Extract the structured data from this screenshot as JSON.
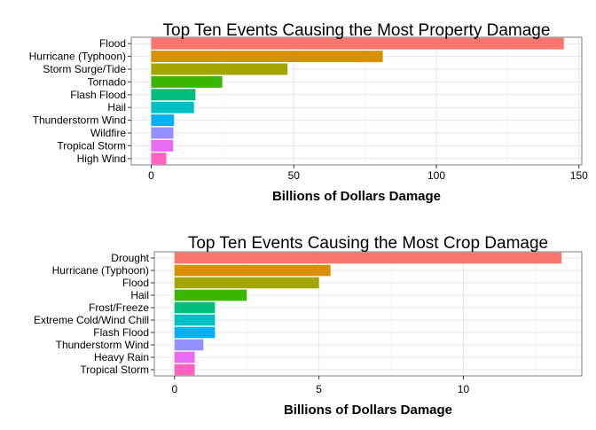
{
  "chart_data": [
    {
      "type": "bar",
      "orientation": "horizontal",
      "title": "Top Ten Events Causing the Most Property Damage",
      "xlabel": "Billions of Dollars Damage",
      "ylabel": "",
      "xlim": [
        -7,
        151
      ],
      "xticks": [
        0,
        50,
        100,
        150
      ],
      "grid": true,
      "legend": "none",
      "categories": [
        "Flood",
        "Hurricane (Typhoon)",
        "Storm Surge/Tide",
        "Tornado",
        "Flash Flood",
        "Hail",
        "Thunderstorm Wind",
        "Wildfire",
        "Tropical Storm",
        "High Wind"
      ],
      "values": [
        144.7,
        81.2,
        47.8,
        24.9,
        15.5,
        15.0,
        8.0,
        7.8,
        7.7,
        5.3
      ],
      "colors": [
        "#F8766D",
        "#D89000",
        "#A3A500",
        "#39B600",
        "#00BF7D",
        "#00BFC4",
        "#00B0F6",
        "#9590FF",
        "#E76BF3",
        "#FF62BC"
      ]
    },
    {
      "type": "bar",
      "orientation": "horizontal",
      "title": "Top Ten Events Causing the Most Crop Damage",
      "xlabel": "Billions of Dollars Damage",
      "ylabel": "",
      "xlim": [
        -0.7,
        14.1
      ],
      "xticks": [
        0,
        5,
        10
      ],
      "grid": true,
      "legend": "none",
      "categories": [
        "Drought",
        "Hurricane (Typhoon)",
        "Flood",
        "Hail",
        "Frost/Freeze",
        "Extreme Cold/Wind Chill",
        "Flash Flood",
        "Thunderstorm Wind",
        "Heavy Rain",
        "Tropical Storm"
      ],
      "values": [
        13.4,
        5.4,
        5.0,
        2.5,
        1.4,
        1.4,
        1.4,
        1.0,
        0.7,
        0.7
      ],
      "colors": [
        "#F8766D",
        "#D89000",
        "#A3A500",
        "#39B600",
        "#00BF7D",
        "#00BFC4",
        "#00B0F6",
        "#9590FF",
        "#E76BF3",
        "#FF62BC"
      ]
    }
  ]
}
